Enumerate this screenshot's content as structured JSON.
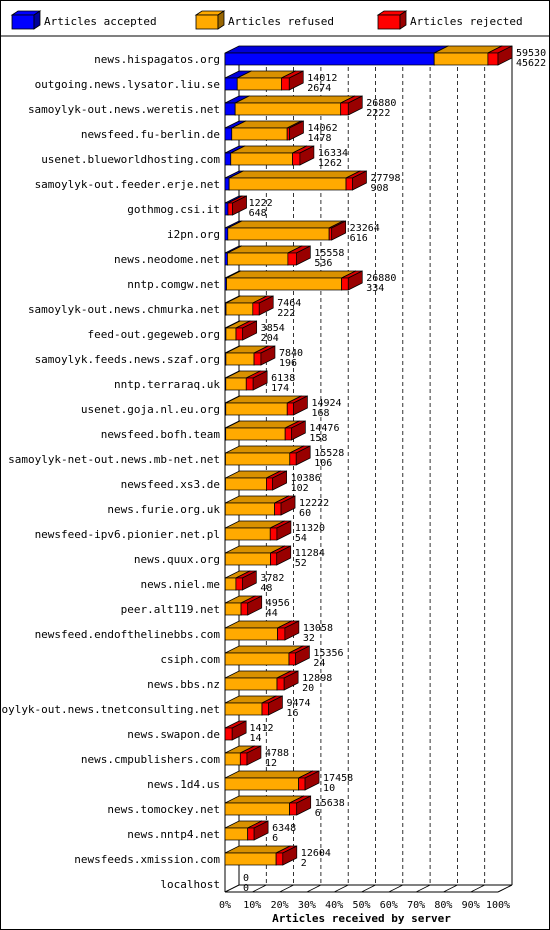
{
  "legend": [
    {
      "key": "accepted",
      "label": "Articles accepted",
      "color": "#0000ff"
    },
    {
      "key": "refused",
      "label": "Articles refused",
      "color": "#ffaa00"
    },
    {
      "key": "rejected",
      "label": "Articles rejected",
      "color": "#ff0000"
    }
  ],
  "chart_data": {
    "type": "bar",
    "orientation": "horizontal",
    "stacked": true,
    "xlabel": "Articles received by server",
    "xticks": [
      "0%",
      "10%",
      "20%",
      "30%",
      "40%",
      "50%",
      "60%",
      "70%",
      "80%",
      "90%",
      "100%"
    ],
    "xlim": [
      0,
      59530
    ],
    "grid": true,
    "legend_position": "top",
    "categories": [
      "news.hispagatos.org",
      "outgoing.news.lysator.liu.se",
      "samoylyk-out.news.weretis.net",
      "newsfeed.fu-berlin.de",
      "usenet.blueworldhosting.com",
      "samoylyk-out.feeder.erje.net",
      "gothmog.csi.it",
      "i2pn.org",
      "news.neodome.net",
      "nntp.comgw.net",
      "samoylyk-out.news.chmurka.net",
      "feed-out.gegeweb.org",
      "samoylyk.feeds.news.szaf.org",
      "nntp.terraraq.uk",
      "usenet.goja.nl.eu.org",
      "newsfeed.bofh.team",
      "samoylyk-net-out.news.mb-net.net",
      "newsfeed.xs3.de",
      "news.furie.org.uk",
      "newsfeed-ipv6.pionier.net.pl",
      "news.quux.org",
      "news.niel.me",
      "peer.alt119.net",
      "newsfeed.endofthelinebbs.com",
      "csiph.com",
      "news.bbs.nz",
      "samoylyk-out.news.tnetconsulting.net",
      "news.swapon.de",
      "news.cmpublishers.com",
      "news.1d4.us",
      "news.tomockey.net",
      "news.nntp4.net",
      "newsfeeds.xmission.com",
      "localhost"
    ],
    "totals": [
      59530,
      14012,
      26880,
      14062,
      16334,
      27798,
      1222,
      23264,
      15558,
      26880,
      7464,
      3854,
      7840,
      6138,
      14924,
      14476,
      15528,
      10386,
      12222,
      11320,
      11284,
      3782,
      4956,
      13058,
      15356,
      12898,
      9474,
      1412,
      4788,
      17458,
      15638,
      6348,
      12604,
      0
    ],
    "accepted": [
      45622,
      2674,
      2222,
      1478,
      1262,
      908,
      648,
      616,
      536,
      334,
      222,
      204,
      196,
      174,
      168,
      158,
      106,
      102,
      60,
      54,
      52,
      48,
      44,
      32,
      24,
      20,
      16,
      14,
      12,
      10,
      6,
      6,
      2,
      0
    ],
    "rejected": [
      2200,
      1700,
      1650,
      500,
      1600,
      1400,
      1000,
      550,
      1850,
      1450,
      1400,
      1450,
      1500,
      1500,
      1350,
      1350,
      1400,
      1350,
      1400,
      1450,
      1350,
      1400,
      1450,
      1600,
      1400,
      1550,
      1400,
      1550,
      1450,
      1400,
      1550,
      1400,
      1450,
      0
    ]
  }
}
